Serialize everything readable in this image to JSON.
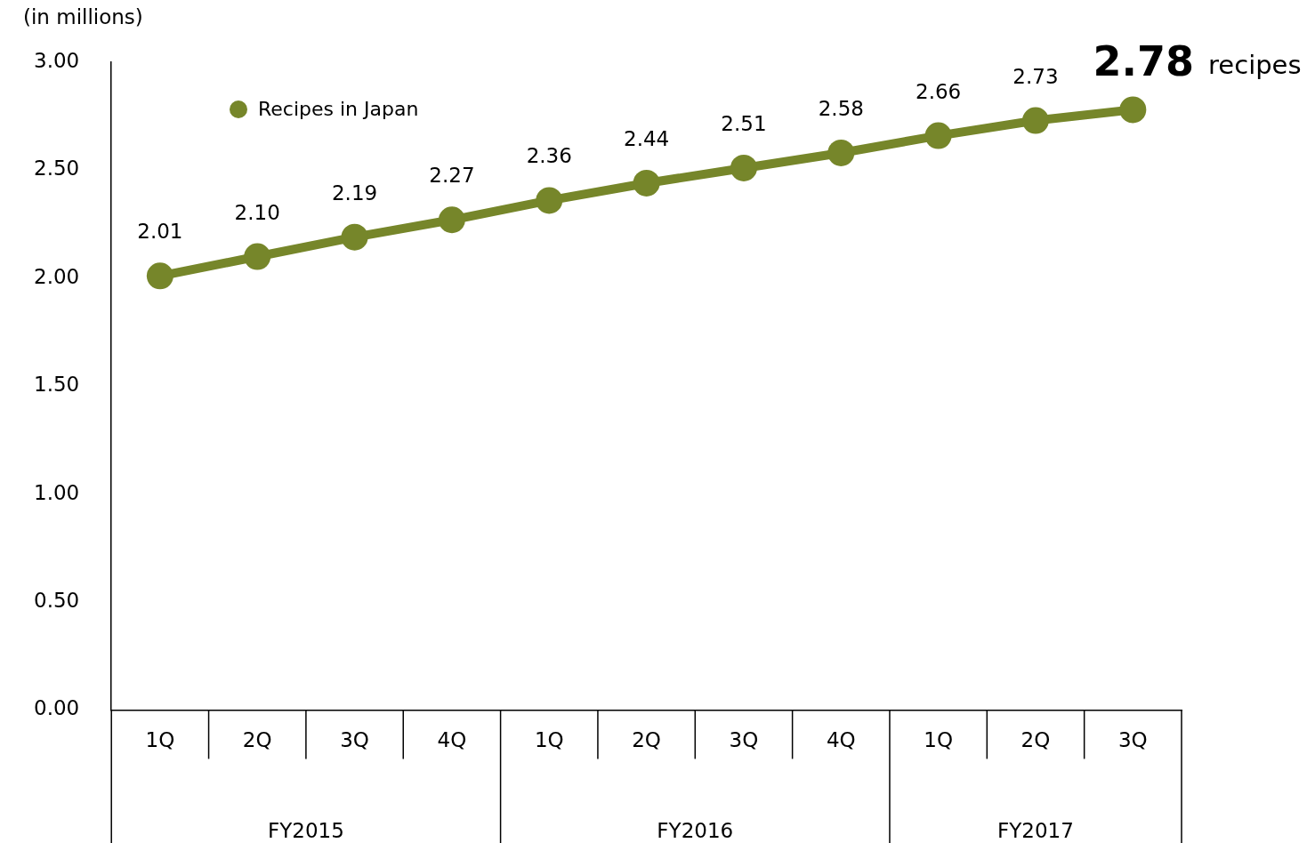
{
  "chart_data": {
    "type": "line",
    "ylabel": "(in millions)",
    "categories": [
      "1Q",
      "2Q",
      "3Q",
      "4Q",
      "1Q",
      "2Q",
      "3Q",
      "4Q",
      "1Q",
      "2Q",
      "3Q"
    ],
    "series": [
      {
        "name": "Recipes in Japan",
        "color": "#76862a",
        "values": [
          2.01,
          2.1,
          2.19,
          2.27,
          2.36,
          2.44,
          2.51,
          2.58,
          2.66,
          2.73,
          2.78
        ],
        "value_labels": [
          "2.01",
          "2.10",
          "2.19",
          "2.27",
          "2.36",
          "2.44",
          "2.51",
          "2.58",
          "2.66",
          "2.73",
          "2.78"
        ]
      }
    ],
    "ylim": [
      0,
      3
    ],
    "yticks": [
      {
        "value": 0,
        "label": "0.00"
      },
      {
        "value": 0.5,
        "label": "0.50"
      },
      {
        "value": 1,
        "label": "1.00"
      },
      {
        "value": 1.5,
        "label": "1.50"
      },
      {
        "value": 2,
        "label": "2.00"
      },
      {
        "value": 2.5,
        "label": "2.50"
      },
      {
        "value": 3,
        "label": "3.00"
      }
    ],
    "marker": "circle",
    "line_style": "solid",
    "grid": false,
    "legend": "top left",
    "annotations": [
      "recipes",
      "FY2015",
      "FY2016",
      "FY2017"
    ]
  }
}
